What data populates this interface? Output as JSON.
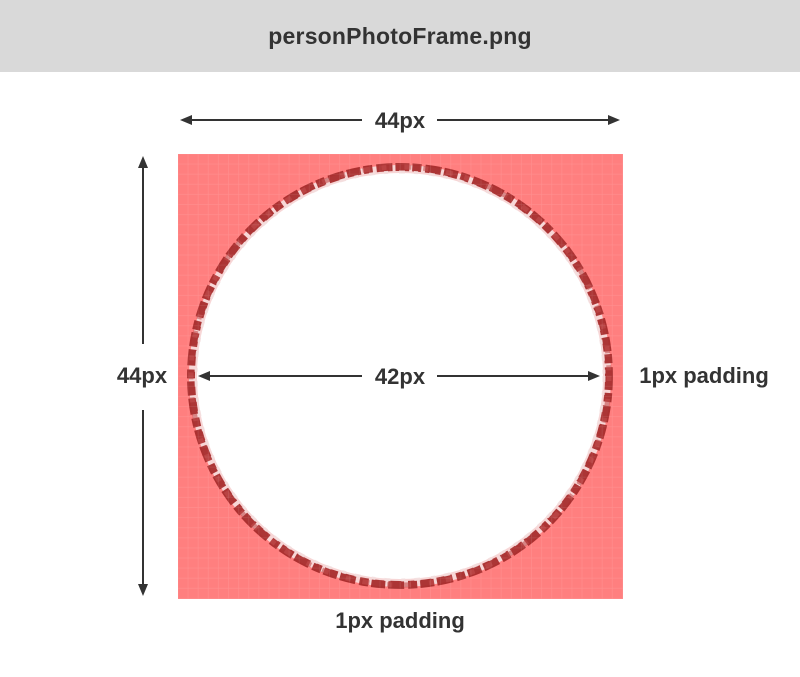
{
  "header": {
    "title": "personPhotoFrame.png"
  },
  "diagram": {
    "width_label": "44px",
    "height_label": "44px",
    "inner_label": "42px",
    "right_padding_label": "1px padding",
    "bottom_padding_label": "1px padding"
  },
  "colors": {
    "header_bg": "#d9d9d9",
    "frame_bg": "#ff7f7f",
    "ring": "#a82c2c",
    "arrow": "#333333",
    "text": "#333333"
  },
  "icons": {
    "arrow_head": "arrowhead"
  }
}
